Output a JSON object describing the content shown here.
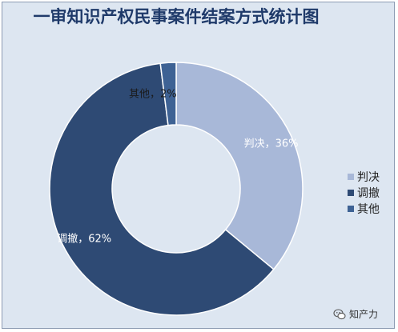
{
  "chart_data": {
    "type": "pie",
    "subtype": "donut",
    "title": "一审知识产权民事案件结案方式统计图",
    "categories": [
      "判决",
      "调撤",
      "其他"
    ],
    "values": [
      36,
      62,
      2
    ],
    "unit": "%",
    "data_labels": [
      "判决，36%",
      "调撤，62%",
      "其他，2%"
    ],
    "colors": [
      "#a8b8d8",
      "#2e4a74",
      "#3e6294"
    ],
    "legend_position": "right"
  },
  "watermark": {
    "text": "知产力",
    "icon": "wechat-icon"
  }
}
